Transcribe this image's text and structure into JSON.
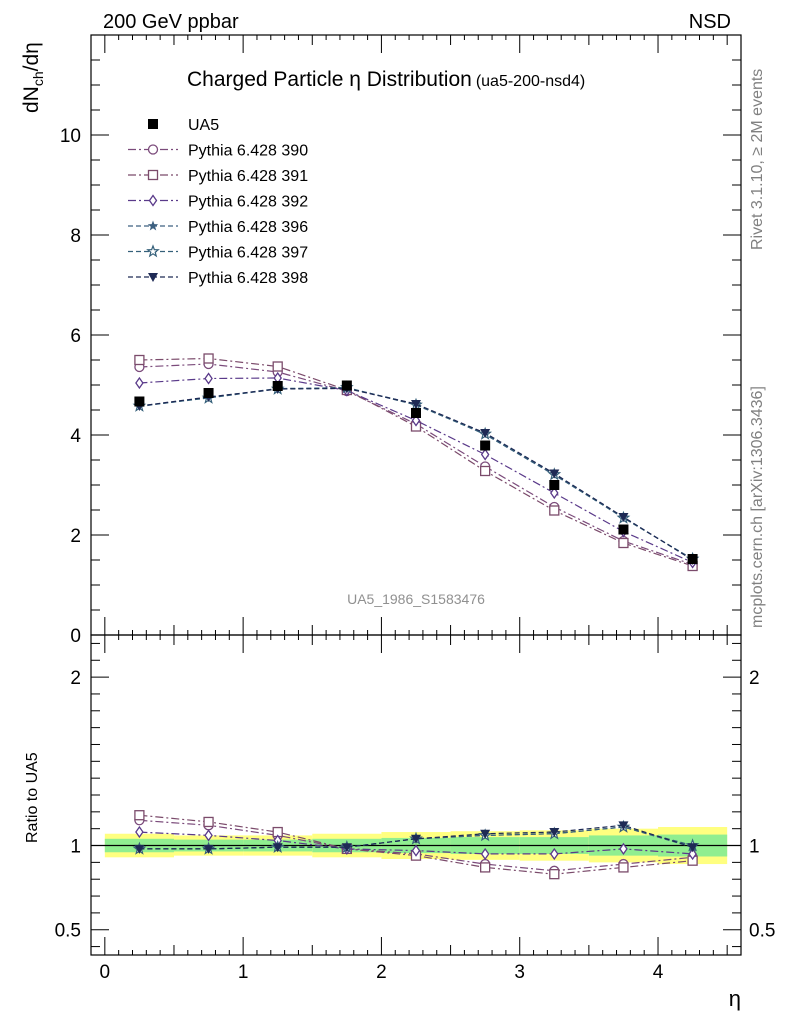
{
  "header": {
    "left": "200 GeV ppbar",
    "right": "NSD"
  },
  "side_text": {
    "top": "Rivet 3.1.10, ≥ 2M events",
    "bottom": "mcplots.cern.ch [arXiv:1306.3436]"
  },
  "title": {
    "main": "Charged Particle η Distribution",
    "tag": "(ua5-200-nsd4)"
  },
  "ylabel_main": {
    "base": "dN",
    "sub": "ch",
    "rest": "/dη"
  },
  "ylabel_ratio": "Ratio to UA5",
  "xlabel": "η",
  "watermark": "UA5_1986_S1583476",
  "colors": {
    "ua5": "#000000",
    "p390": "#7b4b7b",
    "p391": "#7b4b6b",
    "p392": "#5a3a8a",
    "p396": "#3d6080",
    "p397": "#35607a",
    "p398": "#1e2a55",
    "band_inner": "#90ee90",
    "band_outer": "#ffff80"
  },
  "chart_data": [
    {
      "type": "line",
      "title": "Charged Particle η Distribution",
      "xlabel": "η",
      "ylabel": "dNch/dη",
      "xlim": [
        -0.1,
        4.6
      ],
      "ylim": [
        0,
        12
      ],
      "yticks": [
        0,
        2,
        4,
        6,
        8,
        10
      ],
      "x": [
        0.25,
        0.75,
        1.25,
        1.75,
        2.25,
        2.75,
        3.25,
        3.75,
        4.25
      ],
      "series": [
        {
          "name": "UA5",
          "values": [
            4.67,
            4.84,
            4.98,
            4.99,
            4.44,
            3.79,
            3.0,
            2.11,
            1.52
          ]
        },
        {
          "name": "Pythia 6.428 390",
          "values": [
            5.36,
            5.42,
            5.26,
            4.88,
            4.22,
            3.37,
            2.56,
            1.88,
            1.41
          ]
        },
        {
          "name": "Pythia 6.428 391",
          "values": [
            5.5,
            5.53,
            5.37,
            4.9,
            4.17,
            3.28,
            2.49,
            1.84,
            1.38
          ]
        },
        {
          "name": "Pythia 6.428 392",
          "values": [
            5.04,
            5.13,
            5.14,
            4.89,
            4.29,
            3.61,
            2.84,
            2.07,
            1.45
          ]
        },
        {
          "name": "Pythia 6.428 396",
          "values": [
            4.57,
            4.75,
            4.93,
            4.94,
            4.62,
            4.01,
            3.2,
            2.35,
            1.51
          ]
        },
        {
          "name": "Pythia 6.428 397",
          "values": [
            4.58,
            4.74,
            4.92,
            4.95,
            4.6,
            4.02,
            3.21,
            2.34,
            1.52
          ]
        },
        {
          "name": "Pythia 6.428 398",
          "values": [
            4.58,
            4.76,
            4.92,
            4.93,
            4.62,
            4.04,
            3.23,
            2.36,
            1.5
          ]
        }
      ]
    },
    {
      "type": "line",
      "xlabel": "η",
      "ylabel": "Ratio to UA5",
      "xlim": [
        -0.1,
        4.6
      ],
      "ylim": [
        0.35,
        2.25
      ],
      "yticks": [
        0.5,
        1,
        2
      ],
      "x": [
        0.25,
        0.75,
        1.25,
        1.75,
        2.25,
        2.75,
        3.25,
        3.75,
        4.25
      ],
      "bands": {
        "edges": [
          0,
          0.5,
          1,
          1.5,
          2,
          2.5,
          3,
          3.5,
          4,
          4.5
        ],
        "inner": [
          0.04,
          0.035,
          0.035,
          0.04,
          0.045,
          0.05,
          0.05,
          0.06,
          0.065
        ],
        "outer": [
          0.07,
          0.06,
          0.06,
          0.07,
          0.08,
          0.085,
          0.09,
          0.1,
          0.11
        ]
      },
      "series": [
        {
          "name": "Pythia 6.428 390",
          "values": [
            1.15,
            1.12,
            1.06,
            0.98,
            0.95,
            0.89,
            0.85,
            0.89,
            0.93
          ]
        },
        {
          "name": "Pythia 6.428 391",
          "values": [
            1.18,
            1.14,
            1.08,
            0.98,
            0.94,
            0.87,
            0.83,
            0.87,
            0.91
          ]
        },
        {
          "name": "Pythia 6.428 392",
          "values": [
            1.08,
            1.06,
            1.03,
            0.98,
            0.97,
            0.95,
            0.95,
            0.98,
            0.95
          ]
        },
        {
          "name": "Pythia 6.428 396",
          "values": [
            0.98,
            0.98,
            0.99,
            0.99,
            1.04,
            1.06,
            1.07,
            1.11,
            0.99
          ]
        },
        {
          "name": "Pythia 6.428 397",
          "values": [
            0.98,
            0.98,
            0.99,
            0.99,
            1.04,
            1.06,
            1.07,
            1.11,
            1.0
          ]
        },
        {
          "name": "Pythia 6.428 398",
          "values": [
            0.98,
            0.98,
            0.99,
            0.99,
            1.04,
            1.07,
            1.08,
            1.12,
            0.99
          ]
        }
      ]
    }
  ],
  "legend": [
    {
      "label": "UA5",
      "marker": "filled-square",
      "color_key": "ua5"
    },
    {
      "label": "Pythia 6.428 390",
      "marker": "open-circle",
      "color_key": "p390"
    },
    {
      "label": "Pythia 6.428 391",
      "marker": "open-square",
      "color_key": "p391"
    },
    {
      "label": "Pythia 6.428 392",
      "marker": "open-diamond",
      "color_key": "p392"
    },
    {
      "label": "Pythia 6.428 396",
      "marker": "filled-star",
      "color_key": "p396"
    },
    {
      "label": "Pythia 6.428 397",
      "marker": "open-star",
      "color_key": "p397"
    },
    {
      "label": "Pythia 6.428 398",
      "marker": "filled-triangle-down",
      "color_key": "p398"
    }
  ]
}
